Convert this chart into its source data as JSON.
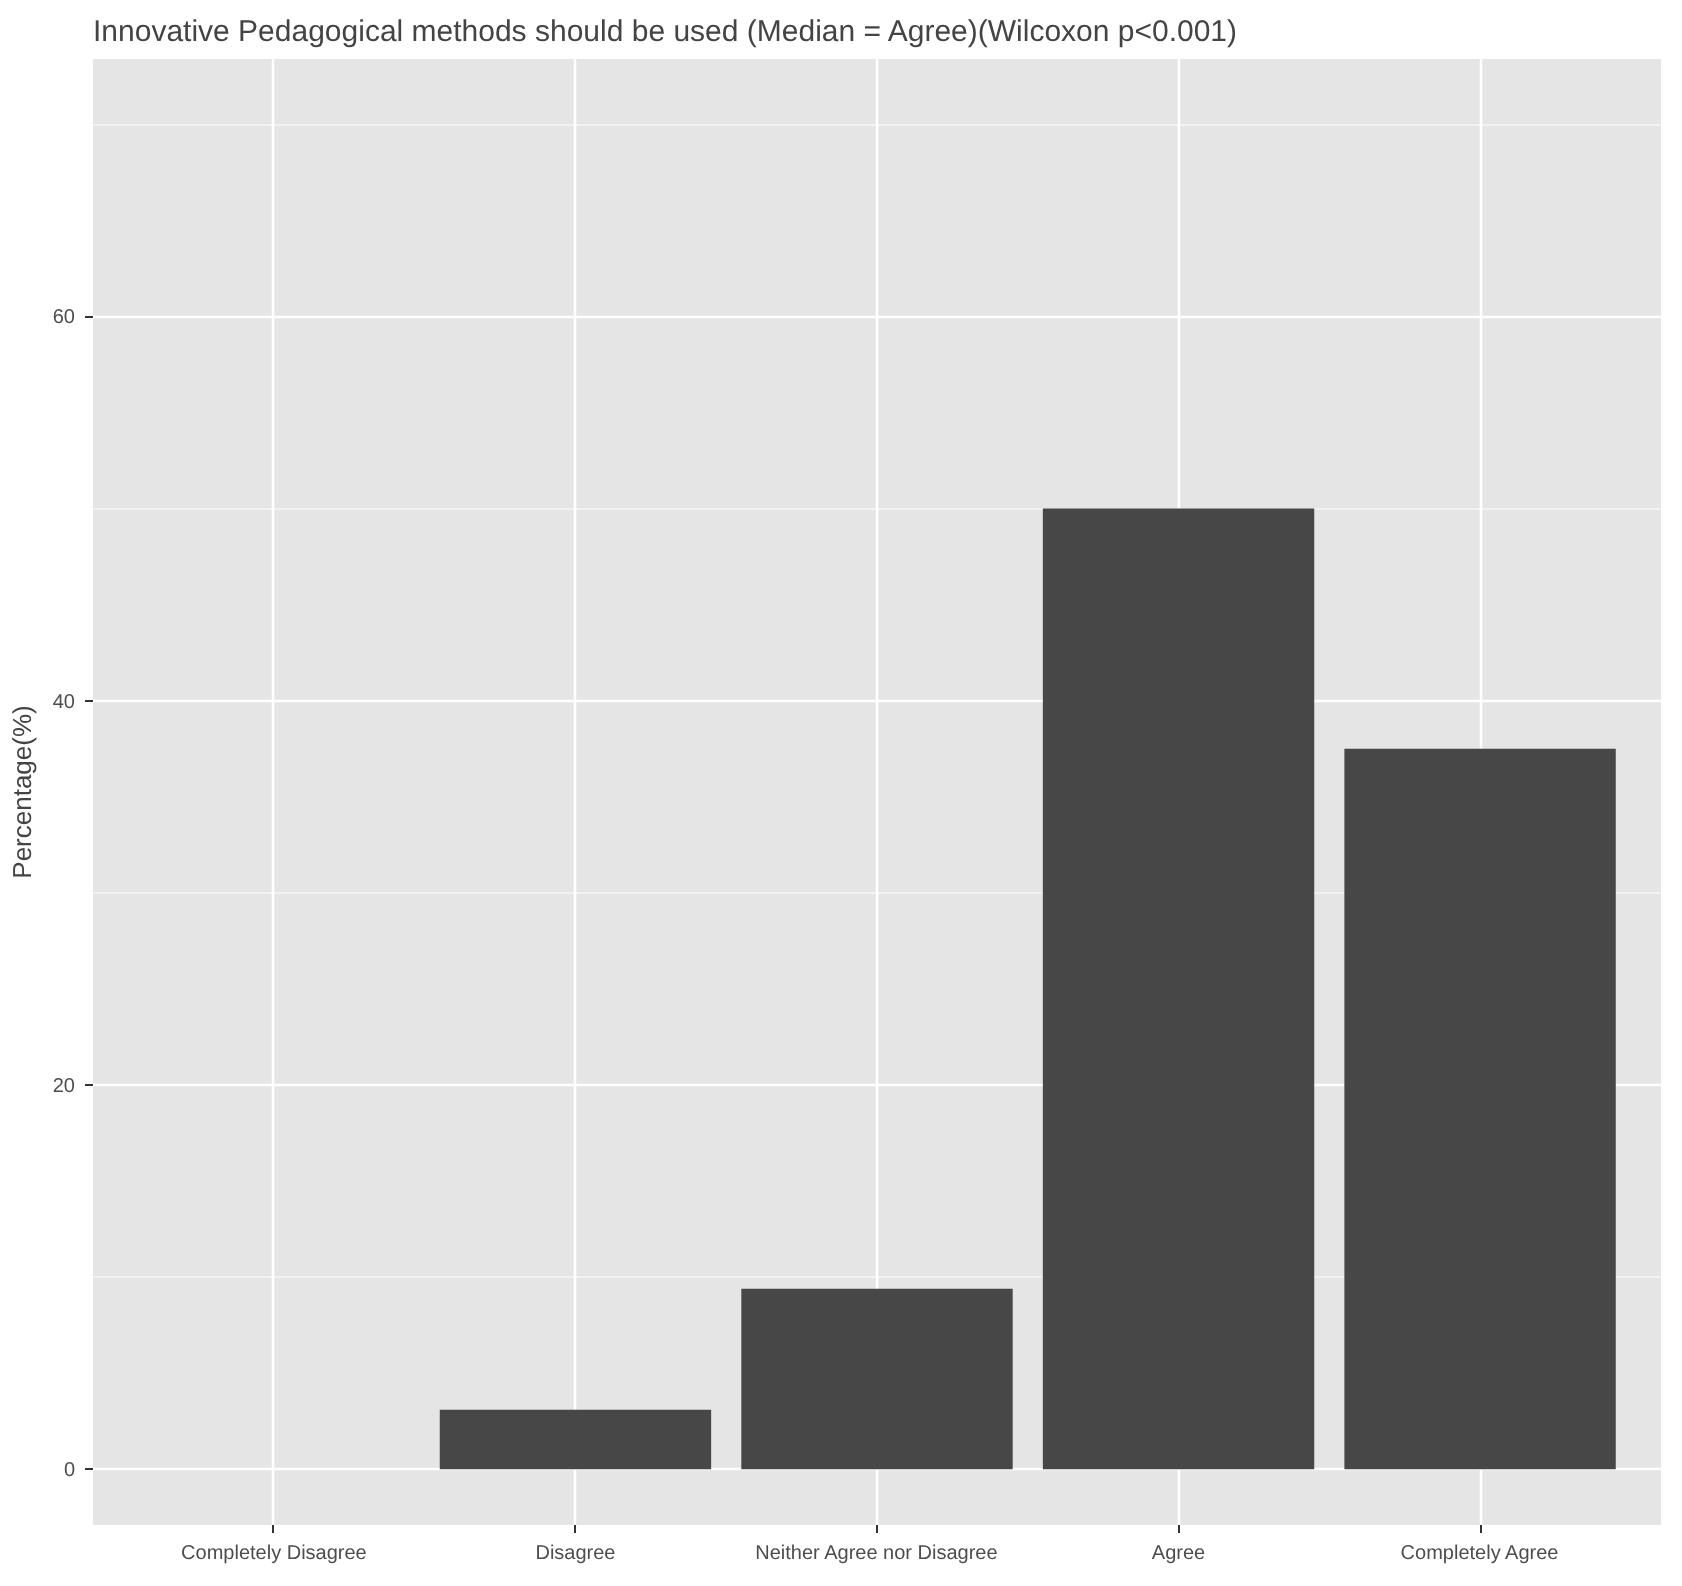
{
  "chart_data": {
    "type": "bar",
    "title": "Innovative Pedagogical methods should be used (Median = Agree)(Wilcoxon p<0.001)",
    "ylabel": "Percentage(%)",
    "categories": [
      "Completely Disagree",
      "Disagree",
      "Neither Agree nor Disagree",
      "Agree",
      "Completely Agree"
    ],
    "values": [
      0,
      3.1,
      9.4,
      50,
      37.5
    ],
    "color": "#474747",
    "ylim": [
      -2.9,
      73.4
    ],
    "yticks": [
      0,
      {
        "value": 10,
        "label": null
      },
      20,
      {
        "value": 30,
        "label": null
      },
      40,
      {
        "value": 50,
        "label": null
      },
      60,
      {
        "value": 70,
        "label": null
      }
    ],
    "grid": true
  }
}
